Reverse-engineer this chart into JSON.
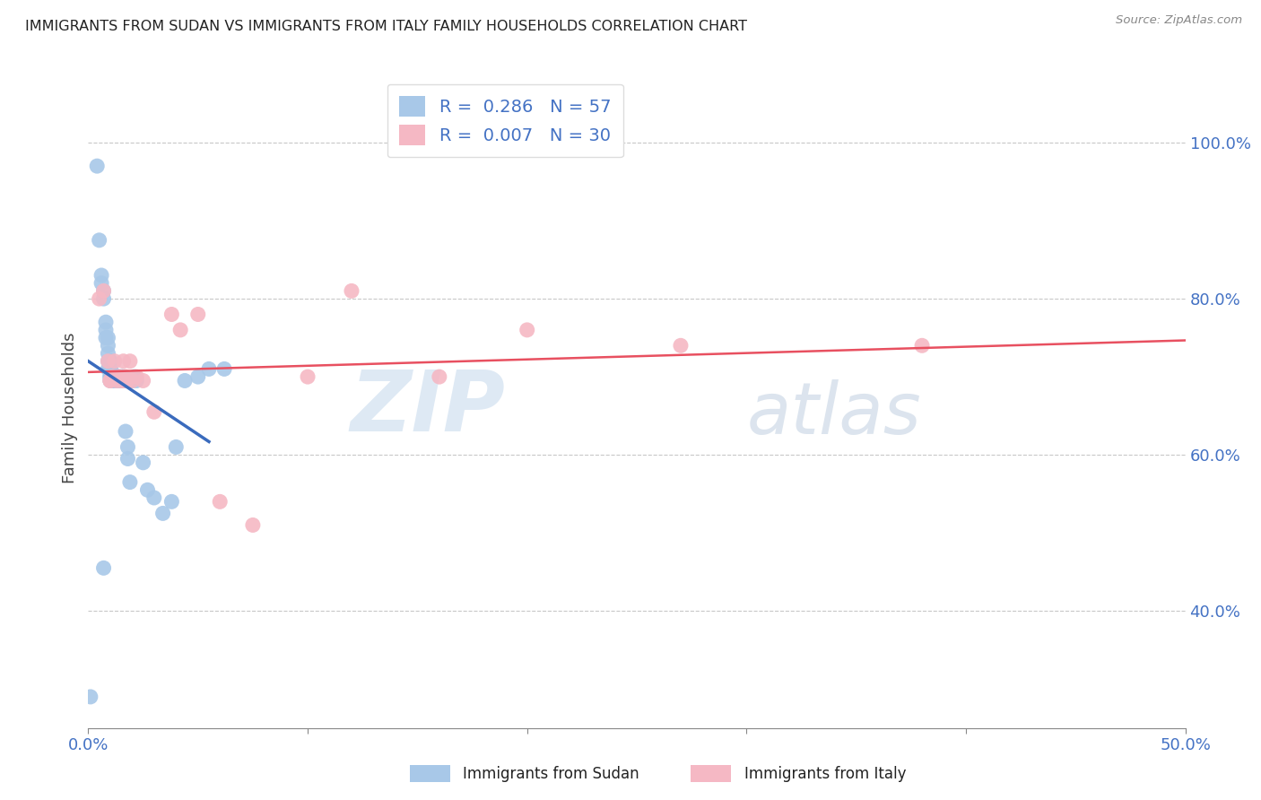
{
  "title": "IMMIGRANTS FROM SUDAN VS IMMIGRANTS FROM ITALY FAMILY HOUSEHOLDS CORRELATION CHART",
  "source": "Source: ZipAtlas.com",
  "ylabel": "Family Households",
  "xlim": [
    0.0,
    0.5
  ],
  "ylim": [
    0.25,
    1.07
  ],
  "sudan_R": 0.286,
  "sudan_N": 57,
  "italy_R": 0.007,
  "italy_N": 30,
  "sudan_color": "#a8c8e8",
  "italy_color": "#f5b8c4",
  "sudan_line_color": "#3a6bbd",
  "italy_line_color": "#e85060",
  "legend_sudan_label": "Immigrants from Sudan",
  "legend_italy_label": "Immigrants from Italy",
  "watermark_zip": "ZIP",
  "watermark_atlas": "atlas",
  "sudan_x": [
    0.001,
    0.004,
    0.005,
    0.006,
    0.006,
    0.007,
    0.007,
    0.008,
    0.008,
    0.008,
    0.009,
    0.009,
    0.009,
    0.009,
    0.009,
    0.01,
    0.01,
    0.01,
    0.01,
    0.01,
    0.01,
    0.011,
    0.011,
    0.011,
    0.011,
    0.012,
    0.012,
    0.013,
    0.013,
    0.013,
    0.014,
    0.014,
    0.014,
    0.015,
    0.015,
    0.016,
    0.016,
    0.016,
    0.017,
    0.018,
    0.018,
    0.019,
    0.02,
    0.021,
    0.022,
    0.025,
    0.027,
    0.03,
    0.034,
    0.038,
    0.04,
    0.044,
    0.05,
    0.055,
    0.062,
    0.01,
    0.007
  ],
  "sudan_y": [
    0.29,
    0.97,
    0.875,
    0.83,
    0.82,
    0.81,
    0.8,
    0.75,
    0.76,
    0.77,
    0.73,
    0.74,
    0.75,
    0.71,
    0.72,
    0.7,
    0.71,
    0.72,
    0.7,
    0.695,
    0.71,
    0.695,
    0.7,
    0.695,
    0.705,
    0.695,
    0.7,
    0.695,
    0.7,
    0.695,
    0.695,
    0.7,
    0.695,
    0.695,
    0.7,
    0.695,
    0.7,
    0.695,
    0.63,
    0.61,
    0.595,
    0.565,
    0.695,
    0.7,
    0.695,
    0.59,
    0.555,
    0.545,
    0.525,
    0.54,
    0.61,
    0.695,
    0.7,
    0.71,
    0.71,
    0.72,
    0.455
  ],
  "italy_x": [
    0.005,
    0.007,
    0.009,
    0.01,
    0.011,
    0.012,
    0.013,
    0.014,
    0.015,
    0.016,
    0.016,
    0.017,
    0.018,
    0.019,
    0.02,
    0.022,
    0.025,
    0.03,
    0.038,
    0.042,
    0.05,
    0.06,
    0.075,
    0.1,
    0.12,
    0.16,
    0.2,
    0.27,
    0.38,
    0.01
  ],
  "italy_y": [
    0.8,
    0.81,
    0.72,
    0.695,
    0.7,
    0.72,
    0.695,
    0.7,
    0.695,
    0.695,
    0.72,
    0.7,
    0.695,
    0.72,
    0.695,
    0.7,
    0.695,
    0.655,
    0.78,
    0.76,
    0.78,
    0.54,
    0.51,
    0.7,
    0.81,
    0.7,
    0.76,
    0.74,
    0.74,
    0.695
  ]
}
